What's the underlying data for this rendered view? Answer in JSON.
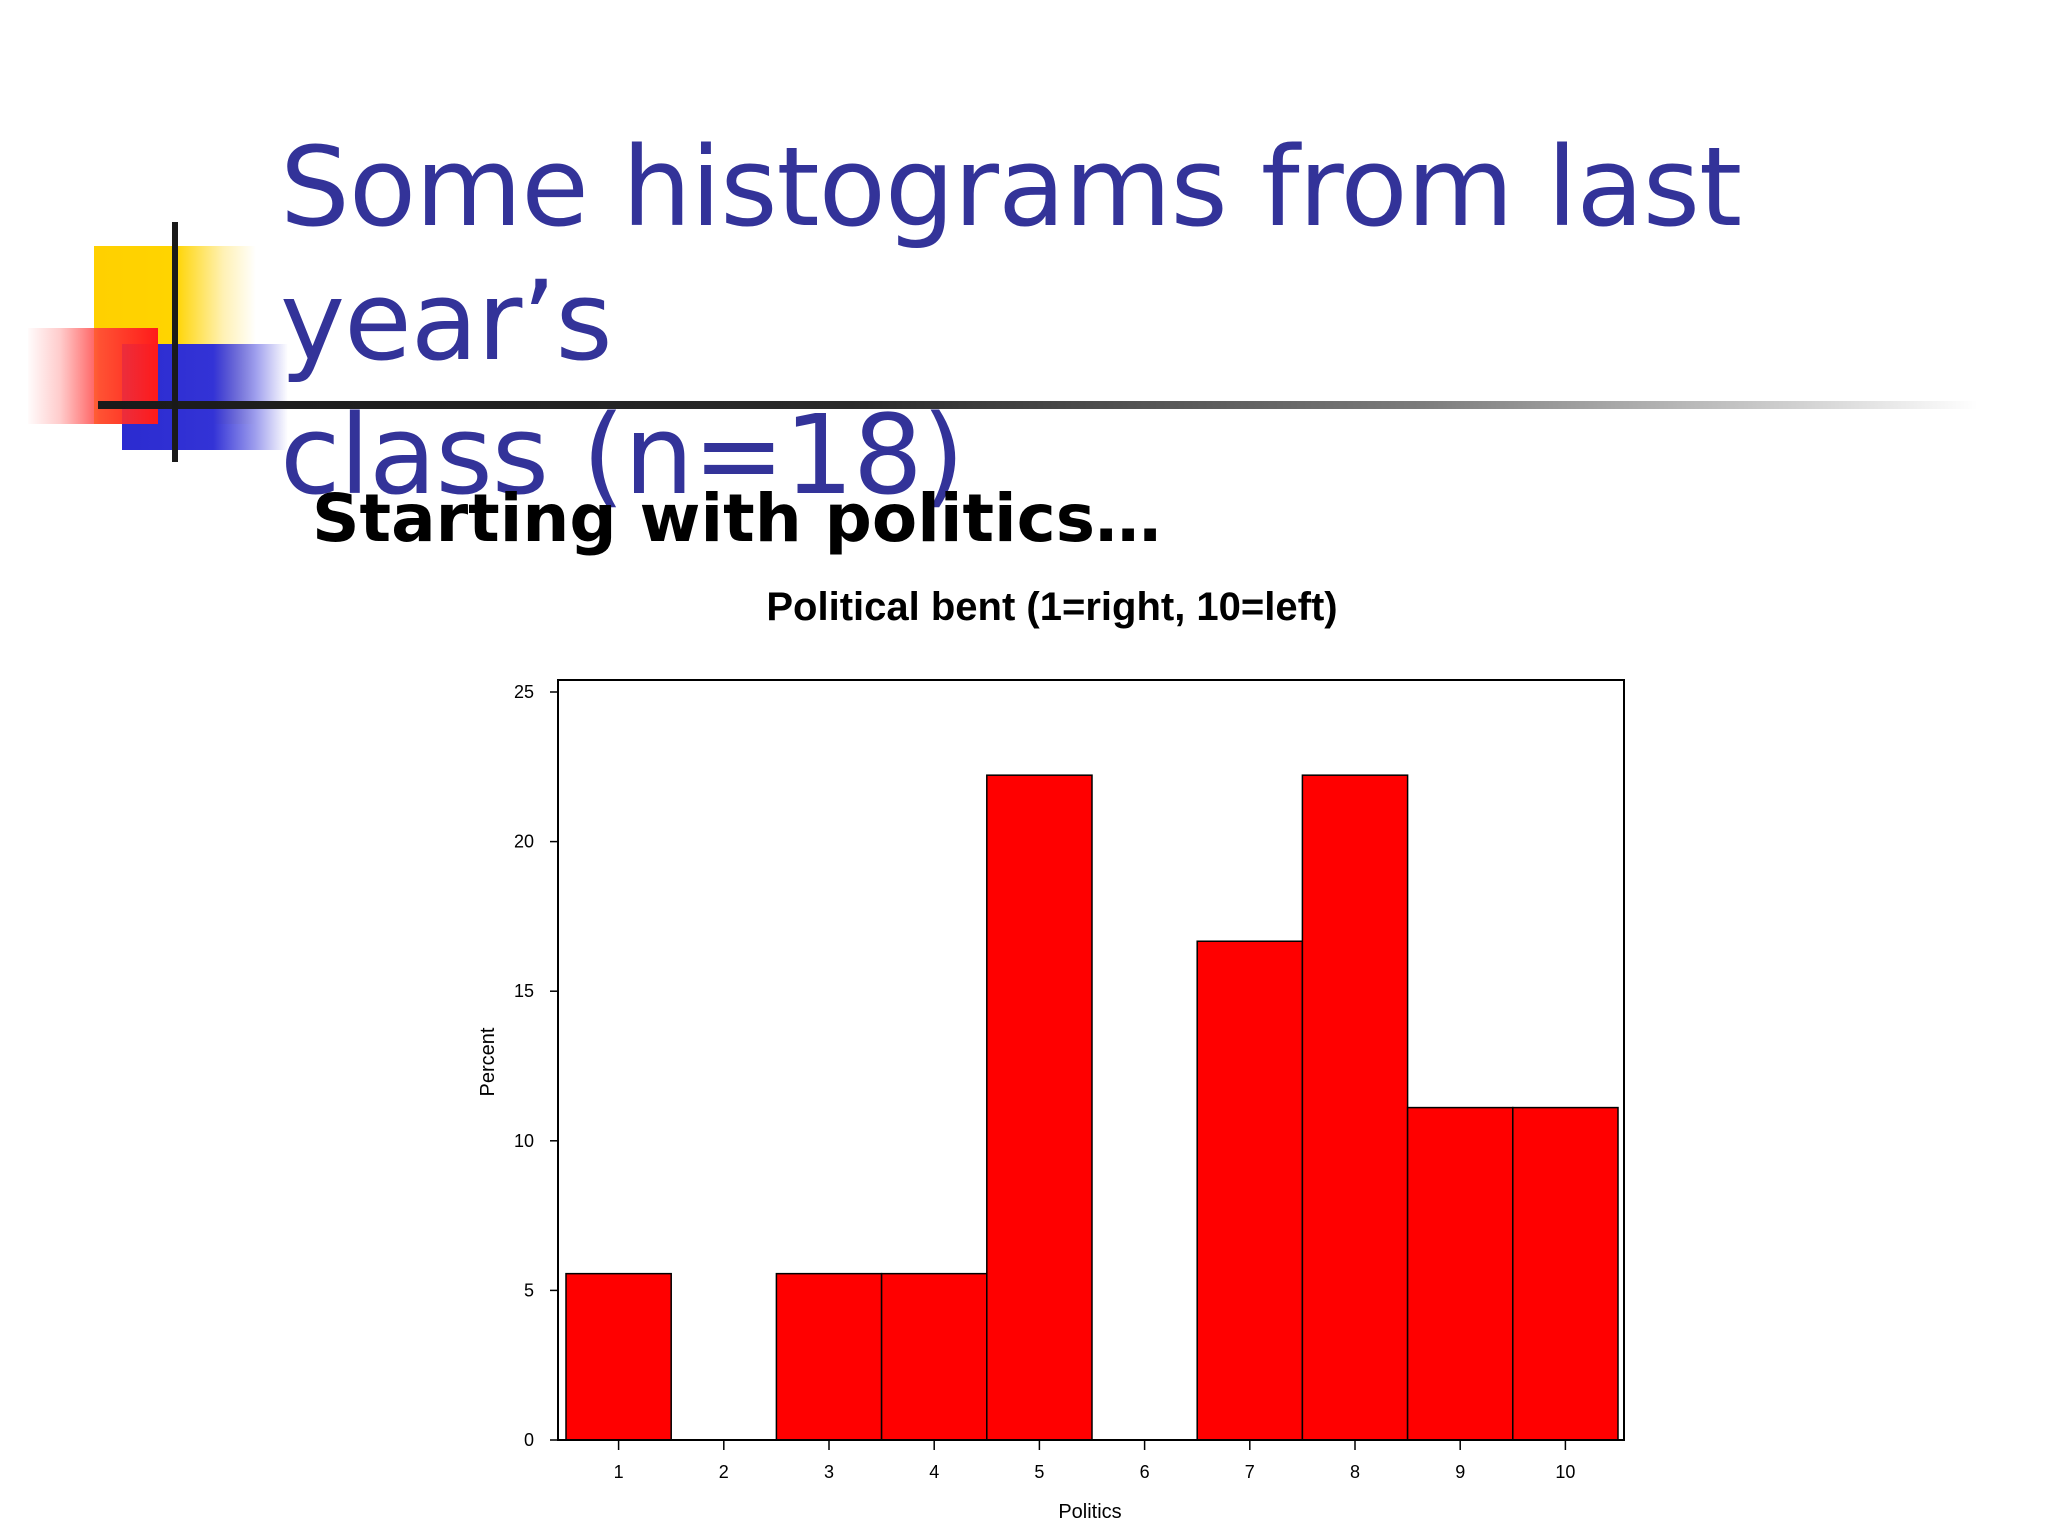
{
  "slide": {
    "title_line1": "Some histograms from last year’s",
    "title_line2": "class (n=18)",
    "subtitle": "Starting with politics…",
    "title_color": "#333399"
  },
  "chart_data": {
    "type": "bar",
    "title": "Political bent (1=right, 10=left)",
    "xlabel": "Politics",
    "ylabel": "Percent",
    "categories": [
      "1",
      "2",
      "3",
      "4",
      "5",
      "6",
      "7",
      "8",
      "9",
      "10"
    ],
    "values": [
      5.56,
      0,
      5.56,
      5.56,
      22.22,
      0,
      16.67,
      22.22,
      11.11,
      11.11
    ],
    "ylim": [
      0,
      25
    ],
    "yticks": [
      0,
      5,
      10,
      15,
      20,
      25
    ],
    "bar_color": "#ff0000",
    "grid": false
  }
}
